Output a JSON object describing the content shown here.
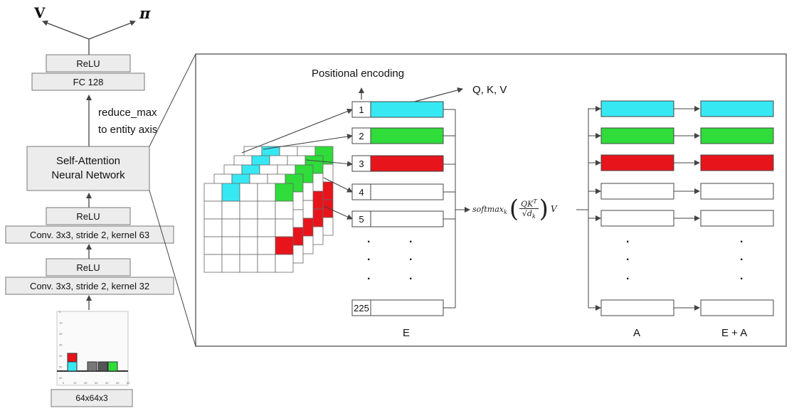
{
  "outputs": {
    "value": "V",
    "policy": "π"
  },
  "left_pipeline": {
    "relu_top": "ReLU",
    "fc": "FC 128",
    "reduce_line1": "reduce_max",
    "reduce_line2": "to entity axis",
    "attn_line1": "Self-Attention",
    "attn_line2": "Neural Network",
    "relu_mid": "ReLU",
    "conv2": "Conv. 3x3, stride 2, kernel 63",
    "relu_low": "ReLU",
    "conv1": "Conv. 3x3, stride 2, kernel 32",
    "input_label": "64x64x3",
    "plot_ticks_y": [
      "0",
      "10",
      "20",
      "30",
      "40",
      "50",
      "60"
    ],
    "plot_ticks_x": [
      "0",
      "10",
      "20",
      "30",
      "40",
      "50",
      "60"
    ]
  },
  "detail": {
    "positional_encoding": "Positional encoding",
    "qkv": "Q, K, V",
    "entity_indices": [
      "1",
      "2",
      "3",
      "4",
      "5",
      "225"
    ],
    "formula": {
      "softmax": "softmax",
      "sub": "k",
      "numer": "QK",
      "sup": "T",
      "denom": "√d",
      "denom_sub": "k",
      "tail": "V"
    },
    "col_labels": {
      "E": "E",
      "A": "A",
      "EA": "E + A"
    },
    "dots": "·"
  },
  "colors": {
    "cyan": "#36e8f2",
    "green": "#2fdc3a",
    "red": "#e8141c",
    "box_fill": "#ececec",
    "stroke": "#555555"
  }
}
